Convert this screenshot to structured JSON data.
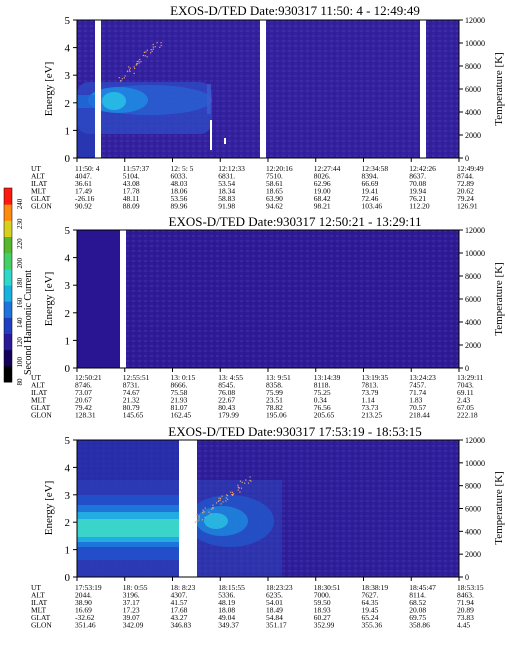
{
  "colors": {
    "background": "#ffffff",
    "colorbar_stops": [
      "#000000",
      "#14005a",
      "#2a1a98",
      "#1f3fc0",
      "#1f74dc",
      "#18b2e0",
      "#30d8c8",
      "#44d068",
      "#56b82e",
      "#d8d020",
      "#ff8a10",
      "#ff1a10"
    ]
  },
  "colorbar": {
    "label": "Second Harmonic Current",
    "ticks": [
      "240",
      "230",
      "220",
      "200",
      "180",
      "160",
      "140",
      "120",
      "100",
      "80"
    ]
  },
  "row_labels": [
    "UT",
    "ALT",
    "ILAT",
    "MLT",
    "GLAT",
    "GLON"
  ],
  "chart_data": [
    {
      "type": "heatmap",
      "title": "EXOS-D/TED   Date:930317   11:50: 4 - 12:49:49",
      "ylabel": "Energy [eV]",
      "y2label": "Temperature [K]",
      "ylim": [
        0,
        5
      ],
      "y2lim": [
        0,
        12000
      ],
      "yticks": [
        "0",
        "1",
        "2",
        "3",
        "4",
        "5"
      ],
      "y2ticks": [
        "0",
        "2000",
        "4000",
        "6000",
        "8000",
        "10000",
        "12000"
      ],
      "x_columns": [
        [
          "11:50: 4",
          "4047.",
          "36.61",
          "17.49",
          "-26.16",
          "90.92"
        ],
        [
          "11:57:37",
          "5104.",
          "43.08",
          "17.78",
          "48.11",
          "88.09"
        ],
        [
          "12: 5: 5",
          "6033.",
          "48.03",
          "18.06",
          "53.56",
          "89.96"
        ],
        [
          "12:12:33",
          "6831.",
          "53.54",
          "18.34",
          "58.83",
          "91.98"
        ],
        [
          "12:20:16",
          "7510.",
          "58.61",
          "18.65",
          "63.90",
          "94.62"
        ],
        [
          "12:27:44",
          "8026.",
          "62.96",
          "19.00",
          "68.42",
          "98.21"
        ],
        [
          "12:34:58",
          "8394.",
          "66.69",
          "19.41",
          "72.46",
          "103.46"
        ],
        [
          "12:42:26",
          "8637.",
          "70.08",
          "19.94",
          "76.21",
          "112.20"
        ],
        [
          "12:49:49",
          "8744.",
          "72.89",
          "20.62",
          "79.24",
          "126.91"
        ]
      ]
    },
    {
      "type": "heatmap",
      "title": "EXOS-D/TED   Date:930317   12:50:21 - 13:29:11",
      "ylabel": "Energy [eV]",
      "y2label": "Temperature [K]",
      "ylim": [
        0,
        5
      ],
      "y2lim": [
        0,
        12000
      ],
      "yticks": [
        "0",
        "1",
        "2",
        "3",
        "4",
        "5"
      ],
      "y2ticks": [
        "0",
        "2000",
        "4000",
        "6000",
        "8000",
        "10000",
        "12000"
      ],
      "x_columns": [
        [
          "12:50:21",
          "8746.",
          "73.07",
          "20.67",
          "79.42",
          "128.31"
        ],
        [
          "12:55:51",
          "8731.",
          "74.67",
          "21.32",
          "80.79",
          "145.65"
        ],
        [
          "13: 0:15",
          "8666.",
          "75.58",
          "21.93",
          "81.07",
          "162.45"
        ],
        [
          "13: 4:55",
          "8545.",
          "76.08",
          "22.67",
          "80.43",
          "179.99"
        ],
        [
          "13: 9:51",
          "8358.",
          "75.99",
          "23.51",
          "78.82",
          "195.06"
        ],
        [
          "13:14:39",
          "8118.",
          "75.25",
          "0.34",
          "76.56",
          "205.65"
        ],
        [
          "13:19:35",
          "7813.",
          "73.79",
          "1.14",
          "73.73",
          "213.25"
        ],
        [
          "13:24:23",
          "7457.",
          "71.74",
          "1.83",
          "70.57",
          "218.44"
        ],
        [
          "13:29:11",
          "7043.",
          "69.11",
          "2.43",
          "67.05",
          "222.18"
        ]
      ]
    },
    {
      "type": "heatmap",
      "title": "EXOS-D/TED   Date:930317   17:53:19 - 18:53:15",
      "ylabel": "Energy [eV]",
      "y2label": "Temperature [K]",
      "ylim": [
        0,
        5
      ],
      "y2lim": [
        0,
        12000
      ],
      "yticks": [
        "0",
        "1",
        "2",
        "3",
        "4",
        "5"
      ],
      "y2ticks": [
        "0",
        "2000",
        "4000",
        "6000",
        "8000",
        "10000",
        "12000"
      ],
      "x_columns": [
        [
          "17:53:19",
          "2044.",
          "38.90",
          "16.69",
          "-32.62",
          "351.46"
        ],
        [
          "18: 0:55",
          "3196.",
          "37.17",
          "17.23",
          "39.07",
          "342.09"
        ],
        [
          "18: 8:23",
          "4307.",
          "41.57",
          "17.68",
          "43.27",
          "346.83"
        ],
        [
          "18:15:55",
          "5336.",
          "48.19",
          "18.08",
          "49.04",
          "349.37"
        ],
        [
          "18:23:23",
          "6235.",
          "54.01",
          "18.49",
          "54.84",
          "351.17"
        ],
        [
          "18:30:51",
          "7000.",
          "59.50",
          "18.93",
          "60.27",
          "352.99"
        ],
        [
          "18:38:19",
          "7627.",
          "64.35",
          "19.45",
          "65.24",
          "355.36"
        ],
        [
          "18:45:47",
          "8114.",
          "68.52",
          "20.08",
          "69.75",
          "358.86"
        ],
        [
          "18:53:15",
          "8463.",
          "71.94",
          "20.89",
          "73.83",
          "4.45"
        ]
      ]
    }
  ]
}
